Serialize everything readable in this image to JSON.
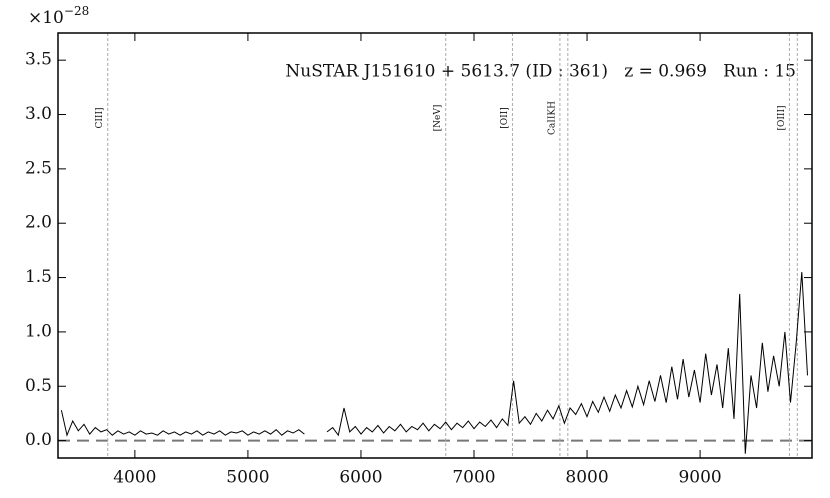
{
  "chart_data": {
    "type": "line",
    "annotation": "NuSTAR J151610 + 5613.7 (ID : 361)   z = 0.969   Run : 15",
    "y_multiplier": {
      "base": "×10",
      "exponent": "−28"
    },
    "xlim": [
      3320,
      9990
    ],
    "ylim": [
      -0.16,
      3.75
    ],
    "xticks": [
      4000,
      5000,
      6000,
      7000,
      8000,
      9000
    ],
    "yticks": [
      {
        "value": 0,
        "label": "0.0"
      },
      0.5,
      {
        "value": 1,
        "label": "1.0"
      },
      1.5,
      {
        "value": 2,
        "label": "2.0"
      },
      2.5,
      {
        "value": 3,
        "label": "3.0"
      },
      3.5
    ],
    "color": "#000000",
    "lines": [
      {
        "label": "CIII]",
        "x": [
          3760
        ]
      },
      {
        "label": "[NeV]",
        "x": [
          6750
        ]
      },
      {
        "label": "[OII]",
        "x": [
          7340
        ]
      },
      {
        "label": "CaIIKH",
        "x": [
          7760,
          7830
        ]
      },
      {
        "label": "[OIII]",
        "x": [
          9790,
          9860
        ]
      }
    ],
    "x": [
      3350,
      3400,
      3450,
      3500,
      3550,
      3600,
      3650,
      3700,
      3750,
      3800,
      3850,
      3900,
      3950,
      4000,
      4050,
      4100,
      4150,
      4200,
      4250,
      4300,
      4350,
      4400,
      4450,
      4500,
      4550,
      4600,
      4650,
      4700,
      4750,
      4800,
      4850,
      4900,
      4950,
      5000,
      5050,
      5100,
      5150,
      5200,
      5250,
      5300,
      5350,
      5400,
      5450,
      5500,
      5550,
      5600,
      5650,
      5700,
      5750,
      5800,
      5850,
      5900,
      5950,
      6000,
      6050,
      6100,
      6150,
      6200,
      6250,
      6300,
      6350,
      6400,
      6450,
      6500,
      6550,
      6600,
      6650,
      6700,
      6750,
      6800,
      6850,
      6900,
      6950,
      7000,
      7050,
      7100,
      7150,
      7200,
      7250,
      7300,
      7350,
      7400,
      7450,
      7500,
      7550,
      7600,
      7650,
      7700,
      7750,
      7800,
      7850,
      7900,
      7950,
      8000,
      8050,
      8100,
      8150,
      8200,
      8250,
      8300,
      8350,
      8400,
      8450,
      8500,
      8550,
      8600,
      8650,
      8700,
      8750,
      8800,
      8850,
      8900,
      8950,
      9000,
      9050,
      9100,
      9150,
      9200,
      9250,
      9300,
      9350,
      9400,
      9450,
      9500,
      9550,
      9600,
      9650,
      9700,
      9750,
      9800,
      9850,
      9900,
      9950
    ],
    "values": [
      0.28,
      0.05,
      0.18,
      0.09,
      0.15,
      0.06,
      0.12,
      0.08,
      0.1,
      0.05,
      0.09,
      0.06,
      0.08,
      0.05,
      0.09,
      0.06,
      0.07,
      0.05,
      0.09,
      0.06,
      0.08,
      0.05,
      0.08,
      0.06,
      0.09,
      0.05,
      0.08,
      0.06,
      0.09,
      0.05,
      0.08,
      0.07,
      0.09,
      0.05,
      0.08,
      0.06,
      0.09,
      0.06,
      0.1,
      0.05,
      0.09,
      0.07,
      0.1,
      0.06,
      null,
      null,
      null,
      0.08,
      0.12,
      0.05,
      0.3,
      0.08,
      0.13,
      0.06,
      0.12,
      0.08,
      0.14,
      0.07,
      0.13,
      0.09,
      0.15,
      0.08,
      0.13,
      0.1,
      0.16,
      0.09,
      0.15,
      0.11,
      0.17,
      0.1,
      0.16,
      0.12,
      0.18,
      0.11,
      0.17,
      0.13,
      0.19,
      0.12,
      0.2,
      0.14,
      0.55,
      0.16,
      0.22,
      0.15,
      0.25,
      0.18,
      0.28,
      0.2,
      0.32,
      0.16,
      0.3,
      0.24,
      0.34,
      0.22,
      0.36,
      0.26,
      0.4,
      0.27,
      0.42,
      0.3,
      0.46,
      0.31,
      0.5,
      0.33,
      0.55,
      0.36,
      0.6,
      0.35,
      0.68,
      0.38,
      0.75,
      0.4,
      0.65,
      0.35,
      0.8,
      0.42,
      0.7,
      0.3,
      0.85,
      0.2,
      1.35,
      -0.12,
      0.6,
      0.3,
      0.9,
      0.45,
      0.78,
      0.5,
      1.0,
      0.35,
      0.9,
      1.55,
      0.6
    ]
  }
}
